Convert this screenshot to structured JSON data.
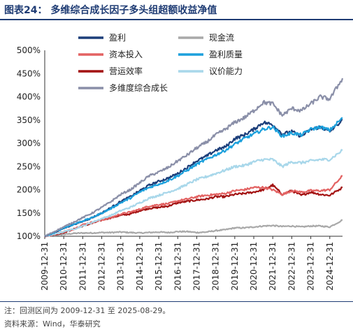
{
  "title": "图表24：  多维综合成长因子多头组超额收益净值",
  "note": "注：回测区间为 2009-12-31 至 2025-08-29。",
  "source": "资料来源：Wind，华泰研究",
  "colors": {
    "title": "#1f3c74",
    "盈利": "#1c3e7a",
    "现金流": "#a9a9a9",
    "资本投入": "#e36262",
    "盈利质量": "#1ca0dc",
    "营运效率": "#a31212",
    "议价能力": "#a8d7ea",
    "多维度综合成长": "#8a8fa8"
  },
  "chart_data": {
    "type": "line",
    "xlabel": "",
    "ylabel": "",
    "ylim": [
      100,
      500
    ],
    "yticks": [
      "100%",
      "150%",
      "200%",
      "250%",
      "300%",
      "350%",
      "400%",
      "450%",
      "500%"
    ],
    "x_ticklabels": [
      "2009-12-31",
      "2010-12-31",
      "2011-12-31",
      "2012-12-31",
      "2013-12-31",
      "2014-12-31",
      "2015-12-31",
      "2016-12-31",
      "2017-12-31",
      "2018-12-31",
      "2019-12-31",
      "2020-12-31",
      "2021-12-31",
      "2022-12-31",
      "2023-12-31",
      "2024-12-31"
    ],
    "x": [
      2010.0,
      2010.5,
      2011.0,
      2011.5,
      2012.0,
      2012.5,
      2013.0,
      2013.5,
      2014.0,
      2014.5,
      2015.0,
      2015.5,
      2016.0,
      2016.5,
      2017.0,
      2017.5,
      2018.0,
      2018.5,
      2019.0,
      2019.5,
      2020.0,
      2020.5,
      2021.0,
      2021.5,
      2022.0,
      2022.5,
      2023.0,
      2023.5,
      2024.0,
      2024.5,
      2025.0,
      2025.67
    ],
    "legend_position": "top, two columns",
    "series": [
      {
        "name": "盈利",
        "values": [
          100,
          108,
          117,
          125,
          132,
          140,
          150,
          162,
          175,
          185,
          198,
          210,
          218,
          225,
          235,
          248,
          262,
          272,
          285,
          292,
          310,
          318,
          330,
          345,
          340,
          320,
          325,
          315,
          330,
          335,
          325,
          350
        ]
      },
      {
        "name": "现金流",
        "values": [
          100,
          102,
          104,
          106,
          107,
          107,
          108,
          108,
          109,
          108,
          107,
          108,
          109,
          108,
          110,
          110,
          108,
          109,
          112,
          114,
          118,
          118,
          120,
          122,
          123,
          121,
          122,
          120,
          122,
          122,
          120,
          135
        ]
      },
      {
        "name": "资本投入",
        "values": [
          100,
          104,
          110,
          115,
          125,
          130,
          135,
          140,
          148,
          152,
          158,
          165,
          168,
          170,
          176,
          180,
          185,
          188,
          190,
          192,
          198,
          200,
          205,
          205,
          200,
          190,
          198,
          195,
          198,
          198,
          200,
          230
        ]
      },
      {
        "name": "盈利质量",
        "values": [
          100,
          108,
          118,
          125,
          133,
          140,
          150,
          160,
          172,
          182,
          195,
          205,
          212,
          220,
          230,
          242,
          255,
          265,
          275,
          285,
          298,
          310,
          320,
          330,
          335,
          315,
          322,
          318,
          330,
          335,
          328,
          355
        ]
      },
      {
        "name": "营运效率",
        "values": [
          100,
          103,
          108,
          115,
          122,
          128,
          135,
          140,
          145,
          148,
          155,
          160,
          162,
          165,
          172,
          175,
          178,
          180,
          185,
          185,
          190,
          192,
          195,
          200,
          210,
          190,
          198,
          188,
          195,
          190,
          188,
          205
        ]
      },
      {
        "name": "议价能力",
        "values": [
          100,
          104,
          110,
          115,
          122,
          130,
          138,
          145,
          155,
          162,
          172,
          182,
          188,
          195,
          202,
          212,
          222,
          228,
          235,
          242,
          250,
          252,
          260,
          265,
          265,
          250,
          260,
          258,
          262,
          265,
          265,
          285
        ]
      },
      {
        "name": "多维度综合成长",
        "values": [
          100,
          110,
          120,
          130,
          140,
          150,
          162,
          175,
          190,
          200,
          215,
          230,
          238,
          248,
          262,
          275,
          290,
          302,
          318,
          330,
          345,
          355,
          370,
          388,
          385,
          360,
          375,
          370,
          385,
          400,
          395,
          440
        ]
      }
    ]
  }
}
